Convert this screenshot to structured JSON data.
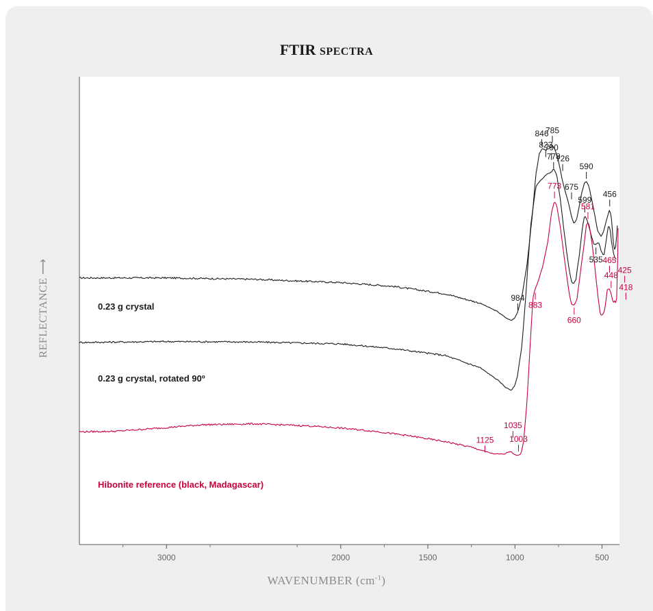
{
  "chart_data": {
    "type": "line",
    "title": "FTIR Spectra",
    "title_main": "FTIR ",
    "title_small": "SPECTRA",
    "xlabel": "WAVENUMBER (cm",
    "xlabel_sup": "-1",
    "xlabel_end": ")",
    "ylabel": "REFLECTANCE",
    "ylabel_arrow": "⟶",
    "x_reversed": true,
    "xlim": [
      3500,
      400
    ],
    "ylim": [
      0,
      100
    ],
    "x_ticks": [
      3000,
      2000,
      1500,
      1000,
      500
    ],
    "x_tick_labels": [
      "3000",
      "2000",
      "1500",
      "1000",
      "500"
    ],
    "x_minor_ticks": [
      3250,
      2750,
      2250,
      1750,
      1250,
      750
    ],
    "grid": false,
    "series": [
      {
        "name": "0.23 g crystal",
        "color": "#1a1a1a",
        "points": [
          [
            3500,
            57
          ],
          [
            3000,
            57
          ],
          [
            2500,
            56.7
          ],
          [
            2000,
            56
          ],
          [
            1700,
            55.2
          ],
          [
            1400,
            53.6
          ],
          [
            1200,
            51.6
          ],
          [
            1100,
            49.8
          ],
          [
            1050,
            48.4
          ],
          [
            1020,
            47.9
          ],
          [
            1000,
            48.5
          ],
          [
            984,
            49.8
          ],
          [
            960,
            53
          ],
          [
            930,
            60
          ],
          [
            900,
            70.5
          ],
          [
            880,
            79
          ],
          [
            860,
            83.5
          ],
          [
            846,
            84.6
          ],
          [
            825,
            84.3
          ],
          [
            810,
            84.6
          ],
          [
            795,
            84.9
          ],
          [
            785,
            85.3
          ],
          [
            770,
            84.4
          ],
          [
            750,
            82
          ],
          [
            726,
            77.5
          ],
          [
            705,
            74.7
          ],
          [
            690,
            72.6
          ],
          [
            675,
            70
          ],
          [
            660,
            68.6
          ],
          [
            645,
            69.6
          ],
          [
            620,
            74.6
          ],
          [
            600,
            77.4
          ],
          [
            590,
            77.6
          ],
          [
            575,
            76.5
          ],
          [
            555,
            73
          ],
          [
            540,
            70
          ],
          [
            525,
            67
          ],
          [
            505,
            65.8
          ],
          [
            490,
            67
          ],
          [
            470,
            70
          ],
          [
            456,
            71.7
          ],
          [
            445,
            69.5
          ],
          [
            435,
            64.5
          ],
          [
            425,
            62.6
          ],
          [
            418,
            65
          ],
          [
            412,
            68.2
          ]
        ]
      },
      {
        "name": "0.23 g crystal, rotated 90º",
        "color": "#1a1a1a",
        "points": [
          [
            3500,
            43.2
          ],
          [
            3000,
            43.4
          ],
          [
            2500,
            43.3
          ],
          [
            2000,
            42.9
          ],
          [
            1700,
            41.9
          ],
          [
            1400,
            40.4
          ],
          [
            1200,
            37.8
          ],
          [
            1100,
            35.2
          ],
          [
            1050,
            33.5
          ],
          [
            1020,
            33
          ],
          [
            1000,
            34
          ],
          [
            985,
            36.2
          ],
          [
            960,
            42.5
          ],
          [
            940,
            52
          ],
          [
            910,
            68
          ],
          [
            880,
            76.5
          ],
          [
            860,
            77.6
          ],
          [
            840,
            78.2
          ],
          [
            823,
            79
          ],
          [
            800,
            79.4
          ],
          [
            790,
            79.6
          ],
          [
            778,
            80.3
          ],
          [
            760,
            79
          ],
          [
            740,
            74
          ],
          [
            715,
            66
          ],
          [
            690,
            59
          ],
          [
            675,
            56.2
          ],
          [
            665,
            55.6
          ],
          [
            650,
            56.7
          ],
          [
            630,
            62
          ],
          [
            610,
            68.5
          ],
          [
            599,
            70.4
          ],
          [
            585,
            69.3
          ],
          [
            565,
            66.5
          ],
          [
            548,
            64.3
          ],
          [
            535,
            64.1
          ],
          [
            520,
            64.7
          ],
          [
            505,
            62.8
          ],
          [
            490,
            61.6
          ],
          [
            478,
            64.5
          ],
          [
            465,
            67.9
          ],
          [
            455,
            67.8
          ],
          [
            445,
            64.5
          ],
          [
            430,
            61.5
          ],
          [
            418,
            61
          ]
        ]
      },
      {
        "name": "Hibonite reference (black, Madagascar)",
        "color": "#c8003c",
        "points": [
          [
            3500,
            24.1
          ],
          [
            3300,
            24.2
          ],
          [
            3000,
            25
          ],
          [
            2800,
            25.6
          ],
          [
            2500,
            25.8
          ],
          [
            2200,
            25.4
          ],
          [
            2000,
            24.9
          ],
          [
            1800,
            24.2
          ],
          [
            1600,
            23.2
          ],
          [
            1400,
            22
          ],
          [
            1250,
            20.8
          ],
          [
            1125,
            19.4
          ],
          [
            1060,
            19.3
          ],
          [
            1035,
            19.9
          ],
          [
            1020,
            19.8
          ],
          [
            1003,
            19.3
          ],
          [
            985,
            19
          ],
          [
            965,
            19.5
          ],
          [
            950,
            22
          ],
          [
            930,
            31
          ],
          [
            910,
            44.5
          ],
          [
            895,
            53.3
          ],
          [
            883,
            54.7
          ],
          [
            865,
            56.5
          ],
          [
            840,
            59.5
          ],
          [
            810,
            65
          ],
          [
            790,
            71
          ],
          [
            773,
            73.4
          ],
          [
            760,
            72.4
          ],
          [
            740,
            68
          ],
          [
            715,
            60.8
          ],
          [
            690,
            54
          ],
          [
            675,
            51.3
          ],
          [
            660,
            51.2
          ],
          [
            645,
            52.2
          ],
          [
            625,
            58
          ],
          [
            600,
            65
          ],
          [
            590,
            68.3
          ],
          [
            581,
            69
          ],
          [
            570,
            67.6
          ],
          [
            550,
            62.3
          ],
          [
            525,
            53.5
          ],
          [
            510,
            49.2
          ],
          [
            500,
            49
          ],
          [
            485,
            50
          ],
          [
            470,
            54.4
          ],
          [
            460,
            54.8
          ],
          [
            448,
            53.7
          ],
          [
            436,
            51.6
          ],
          [
            425,
            52.2
          ],
          [
            418,
            51.2
          ],
          [
            412,
            55.5
          ],
          [
            408,
            67.6
          ]
        ]
      }
    ],
    "series_labels": [
      {
        "text": "0.23 g crystal",
        "color": "#1a1a1a"
      },
      {
        "text": "0.23 g crystal, rotated 90º",
        "color": "#1a1a1a"
      },
      {
        "text": "Hibonite reference (black, Madagascar)",
        "color": "#c8003c"
      }
    ],
    "annotations": [
      {
        "text": "846",
        "x": 846,
        "series": 0,
        "color": "#1a1a1a"
      },
      {
        "text": "785",
        "x": 785,
        "series": 0,
        "color": "#1a1a1a"
      },
      {
        "text": "726",
        "x": 726,
        "series": 0,
        "color": "#1a1a1a"
      },
      {
        "text": "675",
        "x": 675,
        "series": 0,
        "color": "#1a1a1a"
      },
      {
        "text": "590",
        "x": 590,
        "series": 0,
        "color": "#1a1a1a"
      },
      {
        "text": "456",
        "x": 456,
        "series": 0,
        "color": "#1a1a1a"
      },
      {
        "text": "984",
        "x": 984,
        "series": 0,
        "color": "#1a1a1a"
      },
      {
        "text": "823",
        "x": 823,
        "series": 1,
        "color": "#1a1a1a"
      },
      {
        "text": "790",
        "x": 790,
        "series": 1,
        "color": "#1a1a1a"
      },
      {
        "text": "778",
        "x": 778,
        "series": 1,
        "color": "#1a1a1a"
      },
      {
        "text": "599",
        "x": 599,
        "series": 1,
        "color": "#1a1a1a"
      },
      {
        "text": "535",
        "x": 535,
        "series": 1,
        "color": "#1a1a1a"
      },
      {
        "text": "773",
        "x": 773,
        "series": 2,
        "color": "#c8003c"
      },
      {
        "text": "883",
        "x": 883,
        "series": 2,
        "color": "#c8003c"
      },
      {
        "text": "581",
        "x": 581,
        "series": 2,
        "color": "#c8003c"
      },
      {
        "text": "660",
        "x": 660,
        "series": 2,
        "color": "#c8003c"
      },
      {
        "text": "465",
        "x": 465,
        "series": 2,
        "color": "#c8003c"
      },
      {
        "text": "448",
        "x": 448,
        "series": 2,
        "color": "#c8003c"
      },
      {
        "text": "425",
        "x": 425,
        "series": 2,
        "color": "#c8003c"
      },
      {
        "text": "418",
        "x": 418,
        "series": 2,
        "color": "#c8003c"
      },
      {
        "text": "1035",
        "x": 1035,
        "series": 2,
        "color": "#c8003c"
      },
      {
        "text": "1003",
        "x": 1003,
        "series": 2,
        "color": "#c8003c"
      },
      {
        "text": "1125",
        "x": 1125,
        "series": 2,
        "color": "#c8003c"
      }
    ]
  }
}
